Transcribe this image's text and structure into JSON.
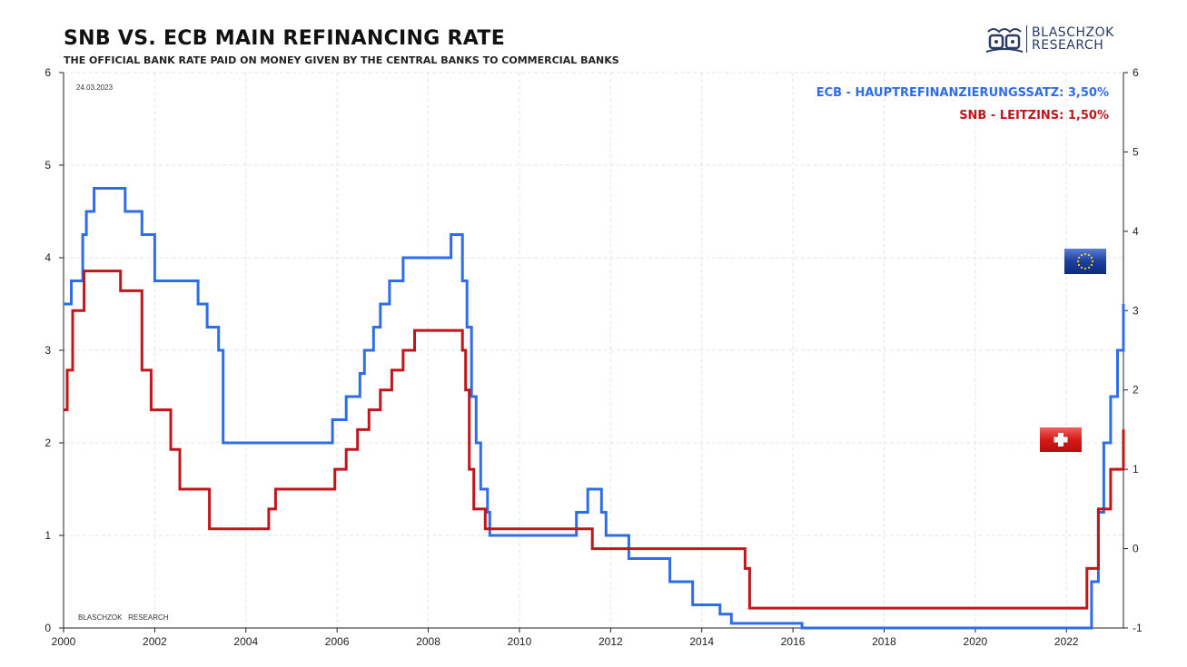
{
  "header": {
    "title": "SNB VS. ECB MAIN REFINANCING RATE",
    "subtitle": "THE OFFICIAL BANK RATE PAID ON MONEY GIVEN BY THE CENTRAL BANKS TO COMMERCIAL BANKS",
    "date": "24.03.2023",
    "watermark": "BLASCHZOK   RESEARCH"
  },
  "logo": {
    "line1": "BLASCHZOK",
    "line2": "RESEARCH",
    "icon": "crown-dice-icon"
  },
  "legend": {
    "ecb_label": "ECB - HAUPTREFINANZIERUNGSSATZ: 3,50%",
    "snb_label": "SNB - LEITZINS: 1,50%"
  },
  "colors": {
    "ecb": "#2f6de8",
    "snb": "#c0161c",
    "grid": "#e6e6e6"
  },
  "chart_data": {
    "type": "line",
    "title": "SNB VS. ECB MAIN REFINANCING RATE",
    "x_range": [
      2000,
      2023.25
    ],
    "x_ticks": [
      2000,
      2002,
      2004,
      2006,
      2008,
      2010,
      2012,
      2014,
      2016,
      2018,
      2020,
      2022
    ],
    "left_axis": {
      "series": "ECB",
      "ylim": [
        0,
        6
      ],
      "ticks": [
        0,
        1,
        2,
        3,
        4,
        5,
        6
      ]
    },
    "right_axis": {
      "series": "SNB",
      "ylim": [
        -1,
        6
      ],
      "ticks": [
        -1,
        0,
        1,
        2,
        3,
        4,
        5,
        6
      ]
    },
    "series": [
      {
        "name": "ECB - HAUPTREFINANZIERUNGSSATZ",
        "axis": "left",
        "color": "#2f6de8",
        "step": true,
        "x": [
          2000.0,
          2000.1,
          2000.17,
          2000.25,
          2000.42,
          2000.5,
          2000.67,
          2000.75,
          2001.35,
          2001.67,
          2001.72,
          2001.9,
          2002.0,
          2002.95,
          2003.15,
          2003.4,
          2003.5,
          2005.9,
          2006.2,
          2006.5,
          2006.6,
          2006.8,
          2006.95,
          2007.15,
          2007.45,
          2008.5,
          2008.75,
          2008.85,
          2008.95,
          2009.05,
          2009.15,
          2009.2,
          2009.3,
          2009.35,
          2011.25,
          2011.5,
          2011.8,
          2011.9,
          2012.4,
          2013.3,
          2013.8,
          2014.4,
          2014.65,
          2016.2,
          2022.55,
          2022.7,
          2022.82,
          2022.97,
          2023.12,
          2023.25
        ],
        "values": [
          3.5,
          3.5,
          3.75,
          3.75,
          4.25,
          4.5,
          4.75,
          4.75,
          4.5,
          4.5,
          4.25,
          4.25,
          3.75,
          3.5,
          3.25,
          3.0,
          2.0,
          2.25,
          2.5,
          2.75,
          3.0,
          3.25,
          3.5,
          3.75,
          4.0,
          4.25,
          3.75,
          3.25,
          2.5,
          2.0,
          1.5,
          1.5,
          1.25,
          1.0,
          1.25,
          1.5,
          1.25,
          1.0,
          0.75,
          0.5,
          0.25,
          0.15,
          0.05,
          0.0,
          0.5,
          1.25,
          2.0,
          2.5,
          3.0,
          3.5
        ]
      },
      {
        "name": "SNB - LEITZINS",
        "axis": "right",
        "color": "#c0161c",
        "step": true,
        "x": [
          2000.0,
          2000.08,
          2000.2,
          2000.45,
          2001.25,
          2001.72,
          2001.92,
          2002.35,
          2002.55,
          2003.2,
          2004.5,
          2004.65,
          2005.95,
          2006.2,
          2006.45,
          2006.7,
          2006.95,
          2007.2,
          2007.45,
          2007.7,
          2008.75,
          2008.82,
          2008.9,
          2009.0,
          2009.25,
          2011.6,
          2014.95,
          2015.05,
          2022.45,
          2022.7,
          2022.97,
          2023.25
        ],
        "values": [
          1.75,
          2.25,
          3.0,
          3.5,
          3.25,
          2.25,
          1.75,
          1.25,
          0.75,
          0.25,
          0.5,
          0.75,
          1.0,
          1.25,
          1.5,
          1.75,
          2.0,
          2.25,
          2.5,
          2.75,
          2.5,
          2.0,
          1.0,
          0.5,
          0.25,
          0.0,
          -0.25,
          -0.75,
          -0.25,
          0.5,
          1.0,
          1.5
        ]
      }
    ]
  }
}
